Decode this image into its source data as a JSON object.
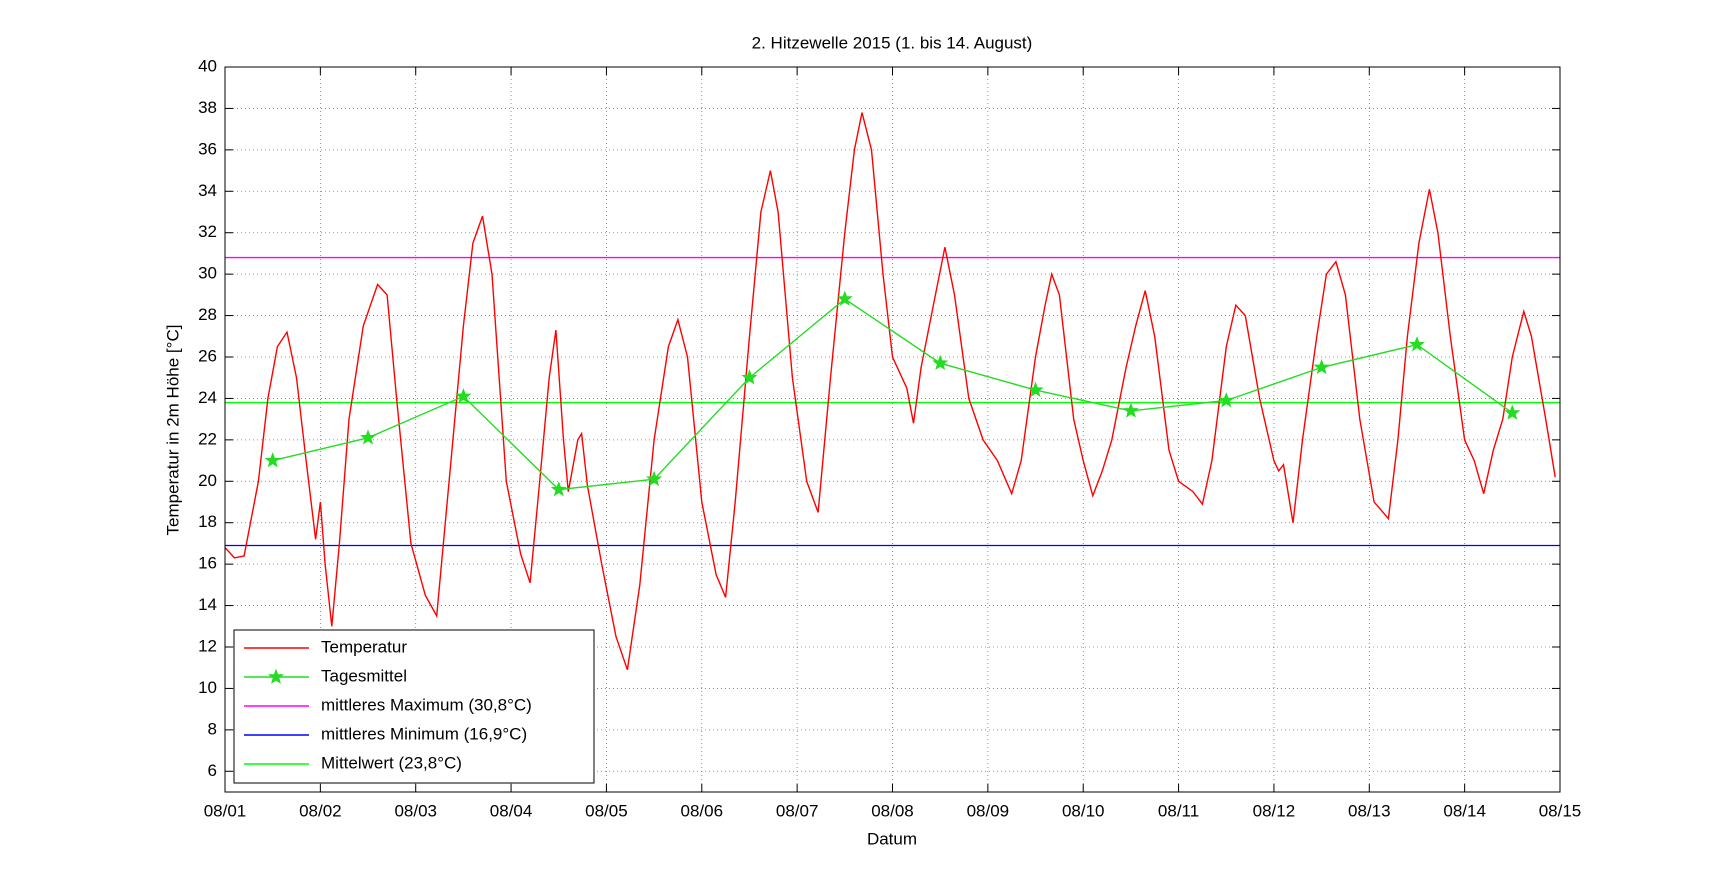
{
  "chart_data": {
    "type": "line",
    "title": "2. Hitzewelle 2015 (1. bis 14. August)",
    "xlabel": "Datum",
    "ylabel": "Temperatur in 2m Höhe [°C]",
    "xlim": [
      0,
      14
    ],
    "xticks": [
      {
        "value": 0,
        "label": "08/01"
      },
      {
        "value": 1,
        "label": "08/02"
      },
      {
        "value": 2,
        "label": "08/03"
      },
      {
        "value": 3,
        "label": "08/04"
      },
      {
        "value": 4,
        "label": "08/05"
      },
      {
        "value": 5,
        "label": "08/06"
      },
      {
        "value": 6,
        "label": "08/07"
      },
      {
        "value": 7,
        "label": "08/08"
      },
      {
        "value": 8,
        "label": "08/09"
      },
      {
        "value": 9,
        "label": "08/10"
      },
      {
        "value": 10,
        "label": "08/11"
      },
      {
        "value": 11,
        "label": "08/12"
      },
      {
        "value": 12,
        "label": "08/13"
      },
      {
        "value": 13,
        "label": "08/14"
      },
      {
        "value": 14,
        "label": "08/15"
      }
    ],
    "ylim": [
      5,
      40
    ],
    "yticks": [
      6,
      8,
      10,
      12,
      14,
      16,
      18,
      20,
      22,
      24,
      26,
      28,
      30,
      32,
      34,
      36,
      38,
      40
    ],
    "grid": true,
    "legend": "lower left",
    "series": [
      {
        "name": "Temperatur",
        "color": "#ff0000",
        "marker": "none",
        "x": [
          0.0,
          0.1,
          0.2,
          0.35,
          0.45,
          0.55,
          0.65,
          0.75,
          0.85,
          0.95,
          1.0,
          1.05,
          1.12,
          1.2,
          1.3,
          1.45,
          1.6,
          1.7,
          1.8,
          1.95,
          2.1,
          2.22,
          2.35,
          2.5,
          2.6,
          2.7,
          2.8,
          2.95,
          3.1,
          3.2,
          3.3,
          3.4,
          3.47,
          3.55,
          3.6,
          3.7,
          3.74,
          3.8,
          3.95,
          4.1,
          4.22,
          4.35,
          4.5,
          4.65,
          4.75,
          4.85,
          5.0,
          5.15,
          5.25,
          5.35,
          5.5,
          5.62,
          5.72,
          5.8,
          5.95,
          6.1,
          6.22,
          6.35,
          6.5,
          6.6,
          6.68,
          6.78,
          6.9,
          7.0,
          7.15,
          7.22,
          7.3,
          7.45,
          7.55,
          7.65,
          7.8,
          7.95,
          8.1,
          8.25,
          8.35,
          8.5,
          8.6,
          8.67,
          8.75,
          8.9,
          9.0,
          9.1,
          9.2,
          9.3,
          9.45,
          9.55,
          9.65,
          9.75,
          9.9,
          10.0,
          10.15,
          10.25,
          10.35,
          10.5,
          10.6,
          10.7,
          10.85,
          11.0,
          11.05,
          11.1,
          11.2,
          11.3,
          11.45,
          11.55,
          11.65,
          11.75,
          11.9,
          12.05,
          12.2,
          12.3,
          12.4,
          12.52,
          12.63,
          12.72,
          12.85,
          13.0,
          13.1,
          13.2,
          13.3,
          13.4,
          13.5,
          13.62,
          13.7,
          13.85,
          13.95
        ],
        "values": [
          16.8,
          16.3,
          16.4,
          20,
          24,
          26.5,
          27.2,
          25,
          21,
          17.2,
          19,
          16,
          13,
          17,
          23,
          27.5,
          29.5,
          29,
          24,
          17,
          14.5,
          13.5,
          20,
          27.5,
          31.5,
          32.8,
          30,
          20,
          16.5,
          15.1,
          20,
          25,
          27.3,
          22,
          19.5,
          22,
          22.3,
          19.8,
          16,
          12.5,
          10.9,
          15,
          22,
          26.5,
          27.8,
          26,
          19,
          15.5,
          14.4,
          19,
          27,
          33,
          35,
          33,
          25,
          20,
          18.5,
          25,
          32,
          36,
          37.8,
          36,
          30,
          26,
          24.5,
          22.8,
          25.5,
          29,
          31.3,
          29,
          24,
          22,
          21,
          19.4,
          21,
          26,
          28.5,
          30,
          29,
          23,
          21,
          19.3,
          20.5,
          22,
          25.5,
          27.5,
          29.2,
          27,
          21.5,
          20,
          19.5,
          18.9,
          21,
          26.5,
          28.5,
          28,
          24,
          21,
          20.5,
          20.8,
          18,
          22,
          27,
          30,
          30.6,
          29,
          23,
          19,
          18.2,
          22,
          27,
          31.5,
          34.1,
          32,
          27,
          22,
          21,
          19.4,
          21.5,
          23,
          26,
          28.2,
          27,
          23,
          20.2
        ]
      },
      {
        "name": "Tagesmittel",
        "color": "#22dd22",
        "marker": "star",
        "x": [
          0.5,
          1.5,
          2.5,
          3.5,
          4.5,
          5.5,
          6.5,
          7.5,
          8.5,
          9.5,
          10.5,
          11.5,
          12.5,
          13.5
        ],
        "values": [
          21.0,
          22.1,
          24.1,
          19.6,
          20.1,
          25.0,
          28.8,
          25.7,
          24.4,
          23.4,
          23.9,
          25.5,
          26.6,
          23.3
        ]
      }
    ],
    "reference_lines": [
      {
        "name": "mittleres Maximum (30,8°C)",
        "value": 30.8,
        "color": "#ff00ff"
      },
      {
        "name": "mittleres Minimum (16,9°C)",
        "value": 16.9,
        "color": "#0000ff"
      },
      {
        "name": "Mittelwert (23,8°C)",
        "value": 23.8,
        "color": "#00ff00"
      }
    ]
  }
}
